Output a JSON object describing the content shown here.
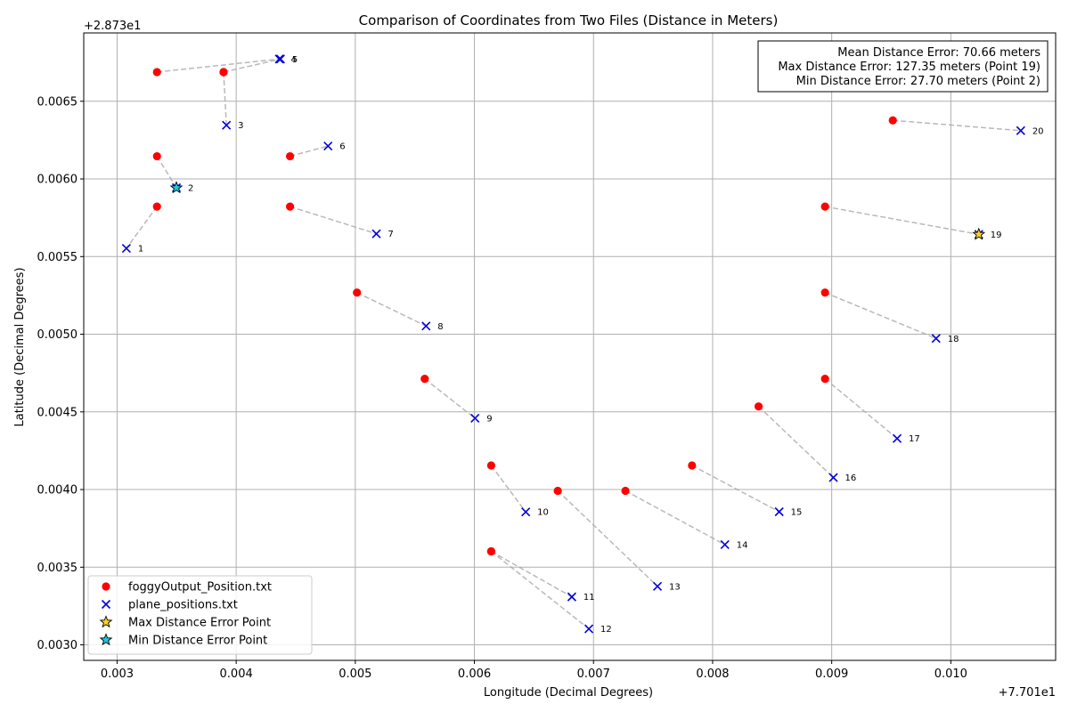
{
  "chart_data": {
    "type": "scatter",
    "title": "Comparison of Coordinates from Two Files (Distance in Meters)",
    "xlabel": "Longitude (Decimal Degrees)",
    "ylabel": "Latitude (Decimal Degrees)",
    "x_offset_label": "+7.701e1",
    "y_offset_label": "+2.873e1",
    "xlim": [
      0.00272,
      0.01088
    ],
    "ylim": [
      0.0029,
      0.00694
    ],
    "xticks": [
      0.003,
      0.004,
      0.005,
      0.006,
      0.007,
      0.008,
      0.009,
      0.01
    ],
    "xtick_labels": [
      "0.003",
      "0.004",
      "0.005",
      "0.006",
      "0.007",
      "0.008",
      "0.009",
      "0.010"
    ],
    "yticks": [
      0.003,
      0.0035,
      0.004,
      0.0045,
      0.005,
      0.0055,
      0.006,
      0.0065
    ],
    "ytick_labels": [
      "0.0030",
      "0.0035",
      "0.0040",
      "0.0045",
      "0.0050",
      "0.0055",
      "0.0060",
      "0.0065"
    ],
    "grid": true,
    "legend_position": "lower-left",
    "stats_position": "upper-right",
    "stats": [
      "Mean Distance Error: 70.66 meters",
      "Max Distance Error: 127.35 meters (Point 19)",
      "Min Distance Error: 27.70 meters (Point 2)"
    ],
    "series": [
      {
        "name": "foggyOutput_Position.txt",
        "marker": "circle",
        "color": "#ff0000",
        "x": [
          0.003335,
          0.003335,
          0.003894,
          0.003335,
          0.003894,
          0.004452,
          0.004452,
          0.005014,
          0.005583,
          0.006141,
          0.006141,
          0.006141,
          0.0067,
          0.007268,
          0.007827,
          0.008386,
          0.008944,
          0.008944,
          0.008944,
          0.009513
        ],
        "y": [
          0.005822,
          0.006146,
          0.006688,
          0.006688,
          0.006688,
          0.006146,
          0.005822,
          0.005268,
          0.004713,
          0.004155,
          0.003602,
          0.003602,
          0.003992,
          0.003992,
          0.004155,
          0.004535,
          0.004713,
          0.005268,
          0.005822,
          0.006377
        ]
      },
      {
        "name": "plane_positions.txt",
        "marker": "x",
        "color": "#0000dd",
        "labels": [
          "1",
          "2",
          "3",
          "4",
          "5",
          "6",
          "7",
          "8",
          "9",
          "10",
          "11",
          "12",
          "13",
          "14",
          "15",
          "16",
          "17",
          "18",
          "19",
          "20"
        ],
        "x": [
          0.003078,
          0.003498,
          0.003918,
          0.004362,
          0.004372,
          0.004771,
          0.005177,
          0.005594,
          0.006005,
          0.006431,
          0.006818,
          0.006961,
          0.007537,
          0.008103,
          0.008559,
          0.009014,
          0.009549,
          0.009876,
          0.010235,
          0.010587
        ],
        "y": [
          0.005553,
          0.005943,
          0.006346,
          0.006772,
          0.006772,
          0.006212,
          0.005647,
          0.005053,
          0.004459,
          0.003856,
          0.003309,
          0.003103,
          0.003377,
          0.003645,
          0.003857,
          0.004077,
          0.004329,
          0.004973,
          0.005643,
          0.006311
        ]
      }
    ],
    "connections": "pairwise dashed gray lines between each foggyOutput point and its matching plane_positions point",
    "highlights": [
      {
        "name": "Max Distance Error Point",
        "point_index": 18,
        "marker": "star",
        "color": "#ffd21f"
      },
      {
        "name": "Min Distance Error Point",
        "point_index": 1,
        "marker": "star",
        "color": "#20c8d8"
      }
    ]
  }
}
